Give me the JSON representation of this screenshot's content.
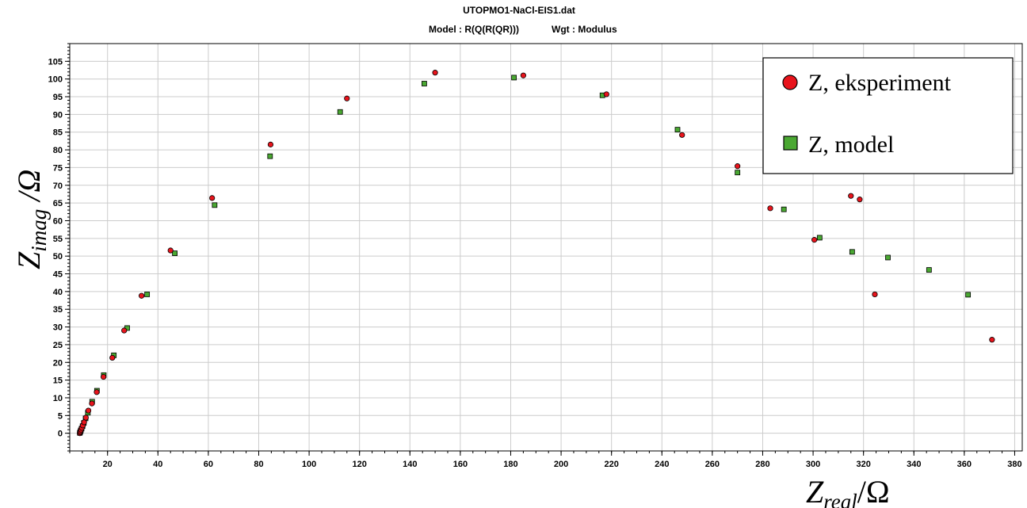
{
  "chart_data": {
    "type": "scatter",
    "title": "UTOPMO1-NaCl-EIS1.dat",
    "subtitle_model": "Model : R(Q(R(QR)))",
    "subtitle_wgt": "Wgt : Modulus",
    "xlabel": {
      "main": "Z",
      "sub": "real",
      "tail": "/Ω"
    },
    "ylabel": {
      "main": "Z",
      "sub": "imag",
      "tail": " /Ω"
    },
    "xlim": [
      5,
      383
    ],
    "ylim": [
      -5,
      110
    ],
    "xticks": [
      20,
      40,
      60,
      80,
      100,
      120,
      140,
      160,
      180,
      200,
      220,
      240,
      260,
      280,
      300,
      320,
      340,
      360,
      380
    ],
    "yticks": [
      0,
      5,
      10,
      15,
      20,
      25,
      30,
      35,
      40,
      45,
      50,
      55,
      60,
      65,
      70,
      75,
      80,
      85,
      90,
      95,
      100,
      105
    ],
    "grid": true,
    "legend_position": "top-right",
    "series": [
      {
        "name": "Z, eksperiment",
        "marker": "circle",
        "color": "#e8141c",
        "points": [
          [
            9.0,
            0.0
          ],
          [
            9.1,
            0.3
          ],
          [
            9.3,
            0.6
          ],
          [
            9.5,
            1.0
          ],
          [
            9.8,
            1.5
          ],
          [
            10.2,
            2.2
          ],
          [
            10.7,
            3.1
          ],
          [
            11.4,
            4.4
          ],
          [
            12.4,
            6.4
          ],
          [
            13.8,
            8.4
          ],
          [
            15.7,
            11.6
          ],
          [
            18.4,
            15.9
          ],
          [
            21.9,
            21.3
          ],
          [
            26.6,
            29.0
          ],
          [
            33.5,
            38.8
          ],
          [
            45.0,
            51.6
          ],
          [
            61.5,
            66.4
          ],
          [
            84.7,
            81.5
          ],
          [
            115.0,
            94.5
          ],
          [
            150.0,
            101.8
          ],
          [
            185.0,
            101.0
          ],
          [
            218.0,
            95.7
          ],
          [
            248.0,
            84.2
          ],
          [
            270.0,
            75.4
          ],
          [
            283.0,
            63.5
          ],
          [
            300.5,
            54.6
          ],
          [
            315.0,
            67.0
          ],
          [
            318.5,
            66.0
          ],
          [
            324.5,
            39.2
          ],
          [
            371.0,
            26.4
          ]
        ]
      },
      {
        "name": "Z, model",
        "marker": "square",
        "color": "#4aa832",
        "points": [
          [
            9.0,
            0.1
          ],
          [
            9.2,
            0.4
          ],
          [
            9.4,
            0.8
          ],
          [
            9.7,
            1.3
          ],
          [
            10.1,
            2.0
          ],
          [
            10.6,
            2.9
          ],
          [
            11.3,
            4.2
          ],
          [
            12.2,
            5.8
          ],
          [
            13.9,
            8.9
          ],
          [
            15.8,
            12.0
          ],
          [
            18.5,
            16.4
          ],
          [
            22.5,
            22.0
          ],
          [
            27.8,
            29.7
          ],
          [
            35.7,
            39.2
          ],
          [
            46.7,
            50.8
          ],
          [
            62.5,
            64.4
          ],
          [
            84.5,
            78.2
          ],
          [
            112.3,
            90.7
          ],
          [
            145.7,
            98.7
          ],
          [
            181.3,
            100.4
          ],
          [
            216.4,
            95.4
          ],
          [
            246.2,
            85.7
          ],
          [
            270.0,
            73.6
          ],
          [
            288.4,
            63.2
          ],
          [
            302.6,
            55.2
          ],
          [
            315.5,
            51.2
          ],
          [
            329.7,
            49.6
          ],
          [
            346.0,
            46.1
          ],
          [
            361.5,
            39.1
          ]
        ]
      }
    ]
  }
}
